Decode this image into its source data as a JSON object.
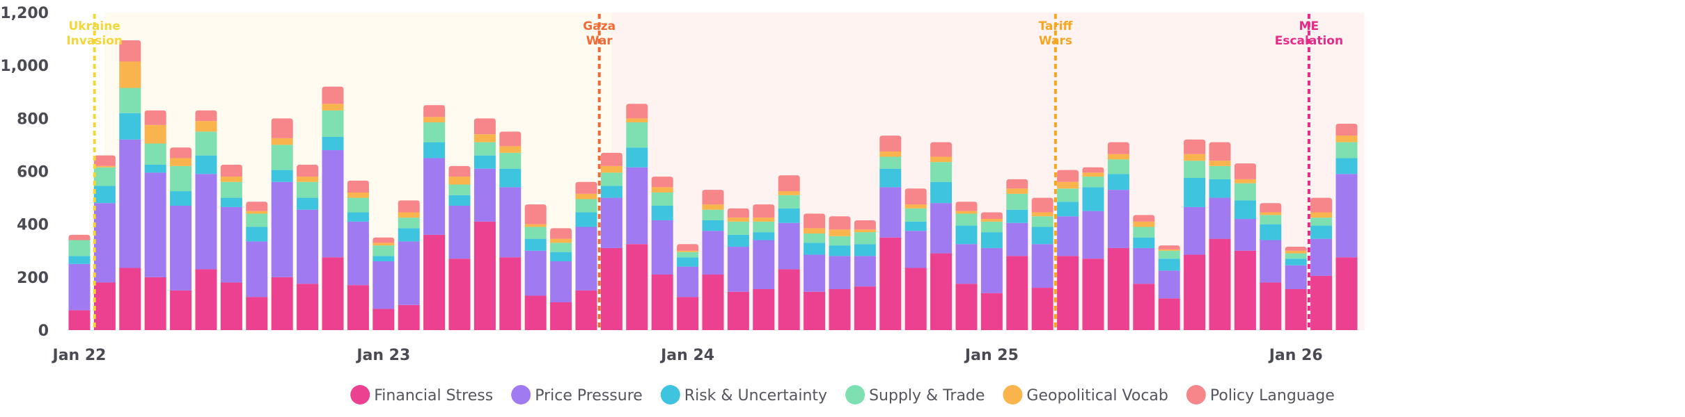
{
  "chart_data": {
    "type": "bar",
    "stacked": true,
    "y_ticks": [
      "0",
      "200",
      "400",
      "600",
      "800",
      "1,000",
      "1,200"
    ],
    "ylim": [
      0,
      1200
    ],
    "grid": false,
    "legend_position": "bottom",
    "x_tick_labels": [
      {
        "label": "Jan 22",
        "index": 0
      },
      {
        "label": "Jan 23",
        "index": 12
      },
      {
        "label": "Jan 24",
        "index": 24
      },
      {
        "label": "Jan 25",
        "index": 36
      },
      {
        "label": "Jan 26",
        "index": 48
      }
    ],
    "regions": [
      {
        "from": 1,
        "to": 21,
        "color": "#fffbf0"
      },
      {
        "from": 21,
        "to": 50,
        "color": "#fff3f1"
      }
    ],
    "events": [
      {
        "name": "Ukraine\nInvasion",
        "index": 1,
        "color": "#f5d63a"
      },
      {
        "name": "Gaza\nWar",
        "index": 21,
        "color": "#f26a35"
      },
      {
        "name": "Tariff\nWars",
        "index": 39,
        "color": "#f5a623"
      },
      {
        "name": "ME\nEscalation",
        "index": 49,
        "color": "#e62a86"
      }
    ],
    "series": [
      {
        "name": "Financial Stress",
        "color": "#ec4190",
        "values": [
          75,
          180,
          235,
          200,
          150,
          230,
          180,
          125,
          200,
          175,
          275,
          170,
          80,
          95,
          360,
          270,
          410,
          275,
          130,
          105,
          150,
          310,
          325,
          210,
          125,
          210,
          145,
          155,
          230,
          145,
          155,
          165,
          350,
          235,
          290,
          175,
          140,
          280,
          160,
          280,
          270,
          310,
          175,
          120,
          285,
          345,
          300,
          180,
          155,
          205,
          275
        ]
      },
      {
        "name": "Price Pressure",
        "color": "#a07af0",
        "values": [
          175,
          300,
          485,
          395,
          320,
          360,
          285,
          210,
          360,
          280,
          405,
          240,
          180,
          240,
          290,
          200,
          200,
          265,
          170,
          155,
          240,
          190,
          290,
          205,
          115,
          165,
          170,
          185,
          175,
          140,
          125,
          115,
          190,
          140,
          190,
          150,
          170,
          125,
          165,
          150,
          180,
          220,
          135,
          105,
          180,
          155,
          120,
          160,
          90,
          140,
          315
        ]
      },
      {
        "name": "Risk & Uncertainty",
        "color": "#3ec4de",
        "values": [
          30,
          65,
          100,
          30,
          55,
          70,
          35,
          55,
          45,
          45,
          50,
          35,
          20,
          50,
          60,
          40,
          50,
          70,
          45,
          35,
          55,
          45,
          75,
          55,
          35,
          40,
          45,
          30,
          55,
          45,
          40,
          45,
          70,
          35,
          80,
          70,
          60,
          50,
          65,
          55,
          90,
          60,
          40,
          45,
          110,
          70,
          70,
          60,
          25,
          50,
          60
        ]
      },
      {
        "name": "Supply & Trade",
        "color": "#7ee0b0",
        "values": [
          60,
          70,
          95,
          80,
          95,
          90,
          60,
          50,
          95,
          60,
          100,
          55,
          40,
          40,
          75,
          40,
          50,
          60,
          45,
          35,
          50,
          50,
          95,
          50,
          20,
          40,
          50,
          40,
          50,
          35,
          35,
          45,
          45,
          50,
          75,
          45,
          40,
          60,
          40,
          50,
          40,
          55,
          40,
          30,
          65,
          50,
          65,
          35,
          20,
          30,
          60
        ]
      },
      {
        "name": "Geopolitical Vocab",
        "color": "#f9b44d",
        "values": [
          0,
          5,
          100,
          70,
          30,
          40,
          20,
          10,
          25,
          20,
          25,
          20,
          10,
          20,
          20,
          30,
          30,
          25,
          10,
          15,
          20,
          25,
          15,
          20,
          5,
          20,
          15,
          15,
          15,
          20,
          25,
          10,
          20,
          15,
          20,
          10,
          10,
          20,
          15,
          25,
          15,
          20,
          20,
          5,
          25,
          20,
          15,
          10,
          10,
          20,
          25
        ]
      },
      {
        "name": "Policy Language",
        "color": "#f7868a",
        "values": [
          20,
          40,
          80,
          55,
          40,
          40,
          45,
          35,
          75,
          45,
          65,
          45,
          20,
          45,
          45,
          40,
          60,
          55,
          75,
          40,
          45,
          50,
          55,
          40,
          25,
          55,
          35,
          50,
          60,
          55,
          50,
          35,
          60,
          60,
          55,
          35,
          25,
          35,
          55,
          45,
          20,
          45,
          25,
          15,
          55,
          70,
          60,
          35,
          15,
          55,
          45
        ]
      }
    ]
  }
}
